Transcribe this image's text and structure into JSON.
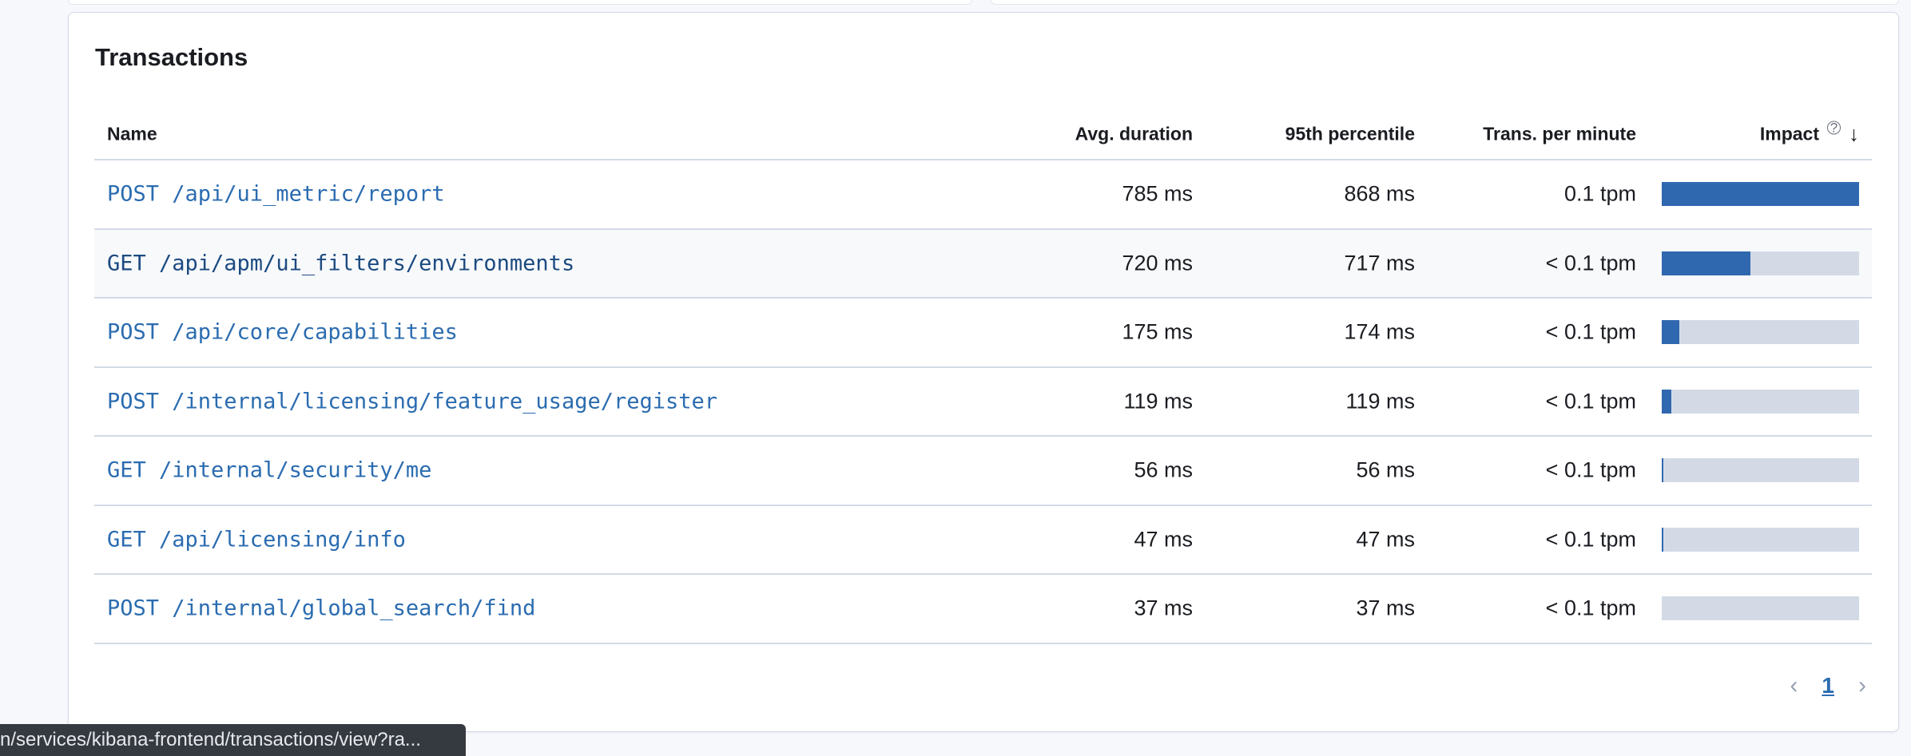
{
  "panel": {
    "title": "Transactions"
  },
  "table": {
    "columns": {
      "name": "Name",
      "avg": "Avg. duration",
      "p95": "95th percentile",
      "tpm": "Trans. per minute",
      "impact": "Impact"
    },
    "sort": {
      "column": "impact",
      "direction": "descending"
    },
    "rows": [
      {
        "name": "POST /api/ui_metric/report",
        "avg": "785 ms",
        "p95": "868 ms",
        "tpm": "0.1 tpm",
        "impact": 1.0
      },
      {
        "name": "GET /api/apm/ui_filters/environments",
        "avg": "720 ms",
        "p95": "717 ms",
        "tpm": "< 0.1 tpm",
        "impact": 0.45
      },
      {
        "name": "POST /api/core/capabilities",
        "avg": "175 ms",
        "p95": "174 ms",
        "tpm": "< 0.1 tpm",
        "impact": 0.09
      },
      {
        "name": "POST /internal/licensing/feature_usage/register",
        "avg": "119 ms",
        "p95": "119 ms",
        "tpm": "< 0.1 tpm",
        "impact": 0.05
      },
      {
        "name": "GET /internal/security/me",
        "avg": "56 ms",
        "p95": "56 ms",
        "tpm": "< 0.1 tpm",
        "impact": 0.01
      },
      {
        "name": "GET /api/licensing/info",
        "avg": "47 ms",
        "p95": "47 ms",
        "tpm": "< 0.1 tpm",
        "impact": 0.01
      },
      {
        "name": "POST /internal/global_search/find",
        "avg": "37 ms",
        "p95": "37 ms",
        "tpm": "< 0.1 tpm",
        "impact": 0.0
      }
    ]
  },
  "pagination": {
    "current_page": "1"
  },
  "status_tooltip": {
    "text": "n/services/kibana-frontend/transactions/view?ra..."
  },
  "colors": {
    "link": "#2b6cb0",
    "impact_fill": "#3068b0",
    "impact_track": "#d3dae6"
  }
}
